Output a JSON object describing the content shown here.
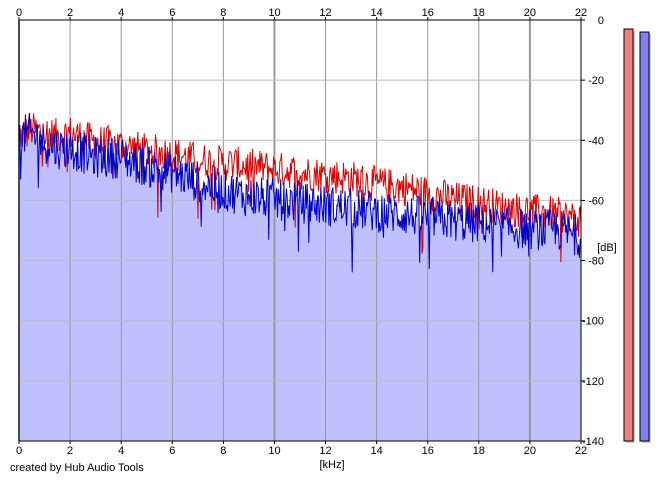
{
  "credit": "created by Hub Audio Tools",
  "chart_data": {
    "type": "area",
    "xlabel": "[kHz]",
    "ylabel": "[dB]",
    "xlim": [
      0,
      22
    ],
    "ylim": [
      -140,
      0
    ],
    "x_ticks": [
      "0",
      "2",
      "4",
      "6",
      "8",
      "10",
      "12",
      "14",
      "16",
      "18",
      "20",
      "22"
    ],
    "y_ticks": [
      "0",
      "-20",
      "-40",
      "-60",
      "-80",
      "-100",
      "-120",
      "-140"
    ],
    "grid": true,
    "series": [
      {
        "color": "#e00000",
        "x": [
          0,
          0.5,
          1,
          1.5,
          2,
          3,
          4,
          5,
          6,
          7,
          8,
          9,
          10,
          11,
          12,
          13,
          14,
          15,
          16,
          17,
          18,
          19,
          20,
          21,
          22
        ],
        "values": [
          -38,
          -36,
          -37,
          -38,
          -37,
          -40,
          -41,
          -43,
          -44,
          -46,
          -47,
          -48,
          -49,
          -50,
          -51,
          -52,
          -54,
          -55,
          -57,
          -59,
          -60,
          -62,
          -63,
          -64,
          -66
        ]
      },
      {
        "color": "#0000c8",
        "x": [
          0,
          0.5,
          1,
          1.5,
          2,
          3,
          4,
          5,
          6,
          7,
          8,
          9,
          10,
          11,
          12,
          13,
          14,
          15,
          16,
          17,
          18,
          19,
          20,
          21,
          22
        ],
        "values": [
          -38,
          -37,
          -40,
          -42,
          -42,
          -45,
          -45,
          -48,
          -50,
          -53,
          -56,
          -58,
          -59,
          -60,
          -61,
          -62,
          -63,
          -64,
          -65,
          -66,
          -67,
          -68,
          -69,
          -69,
          -71
        ]
      }
    ],
    "fill_color": "#c0c0ff",
    "meters": [
      {
        "name": "left-level",
        "color": "#f08080",
        "value_db": -3
      },
      {
        "name": "right-level",
        "color": "#8080f0",
        "value_db": -4
      }
    ]
  }
}
